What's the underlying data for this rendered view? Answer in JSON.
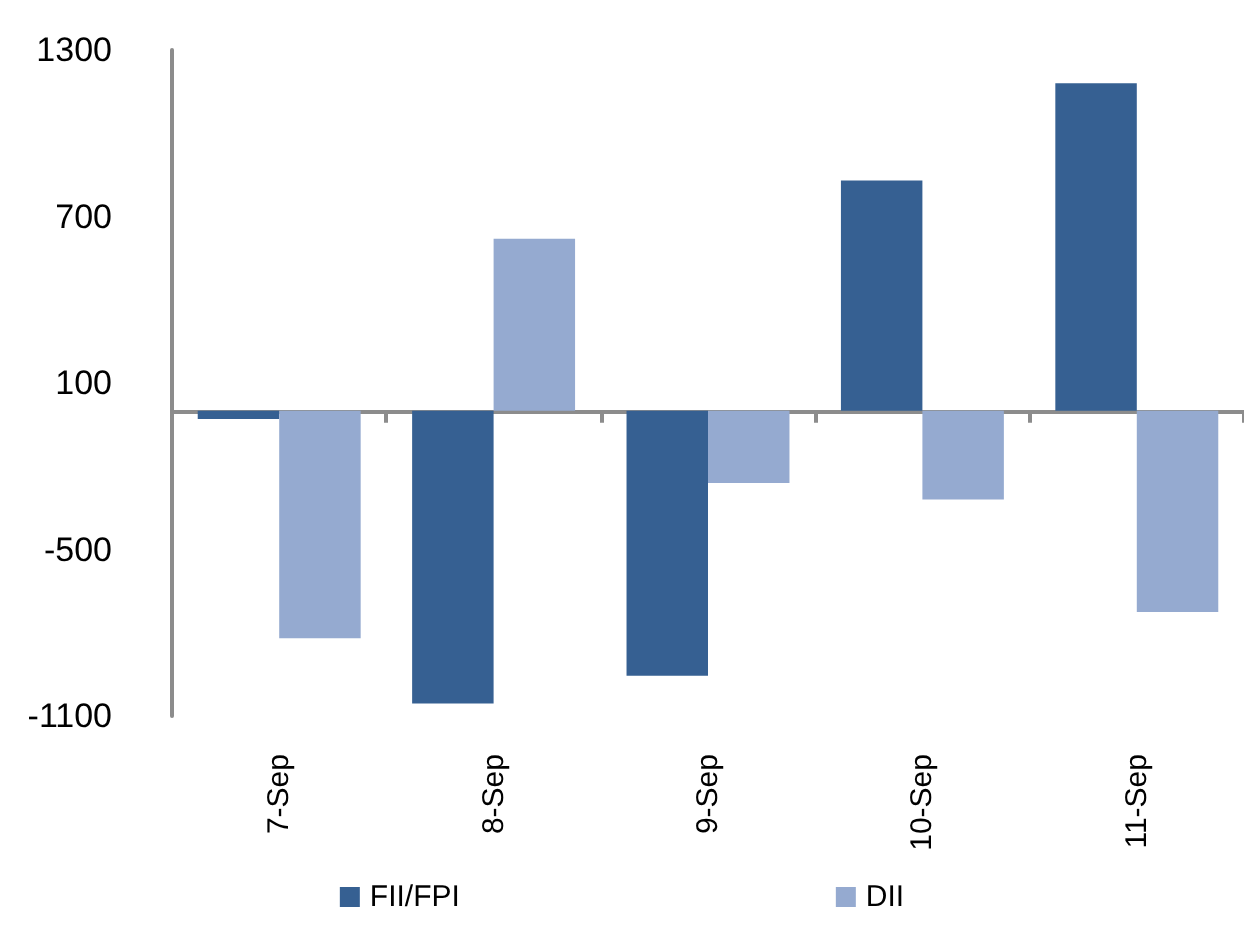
{
  "chart_data": {
    "type": "bar",
    "categories": [
      "7-Sep",
      "8-Sep",
      "9-Sep",
      "10-Sep",
      "11-Sep"
    ],
    "series": [
      {
        "name": "FII/FPI",
        "color": "#366092",
        "values": [
          -30,
          -1055,
          -955,
          830,
          1180
        ]
      },
      {
        "name": "DII",
        "color": "#95aad0",
        "values": [
          -820,
          620,
          -260,
          -320,
          -725
        ]
      }
    ],
    "ylim": [
      -1100,
      1300
    ],
    "yticks": [
      -1100,
      -500,
      100,
      700,
      1300
    ],
    "grid": false,
    "legend": "bottom"
  }
}
